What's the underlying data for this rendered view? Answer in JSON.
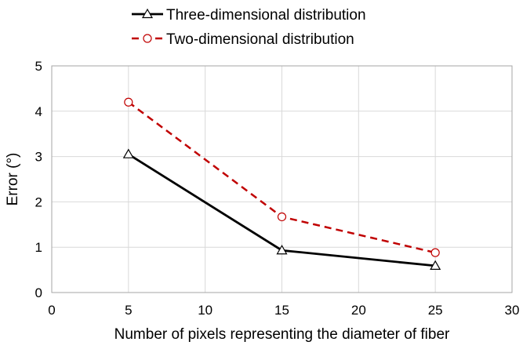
{
  "chart_data": {
    "type": "line",
    "xlabel": "Number of pixels representing the diameter of fiber",
    "ylabel": "Error (°)",
    "xlim": [
      0,
      30
    ],
    "ylim": [
      0,
      5
    ],
    "xticks": [
      0,
      5,
      10,
      15,
      20,
      25,
      30
    ],
    "yticks": [
      0,
      1,
      2,
      3,
      4,
      5
    ],
    "grid": true,
    "legend_position": "top-center",
    "series": [
      {
        "name": "Three-dimensional distribution",
        "x": [
          5,
          15,
          25
        ],
        "y": [
          3.05,
          0.93,
          0.59
        ],
        "color": "#000000",
        "line_style": "solid",
        "marker": "triangle"
      },
      {
        "name": "Two-dimensional distribution",
        "x": [
          5,
          15,
          25
        ],
        "y": [
          4.2,
          1.67,
          0.88
        ],
        "color": "#c00000",
        "line_style": "dashed",
        "marker": "circle"
      }
    ]
  }
}
